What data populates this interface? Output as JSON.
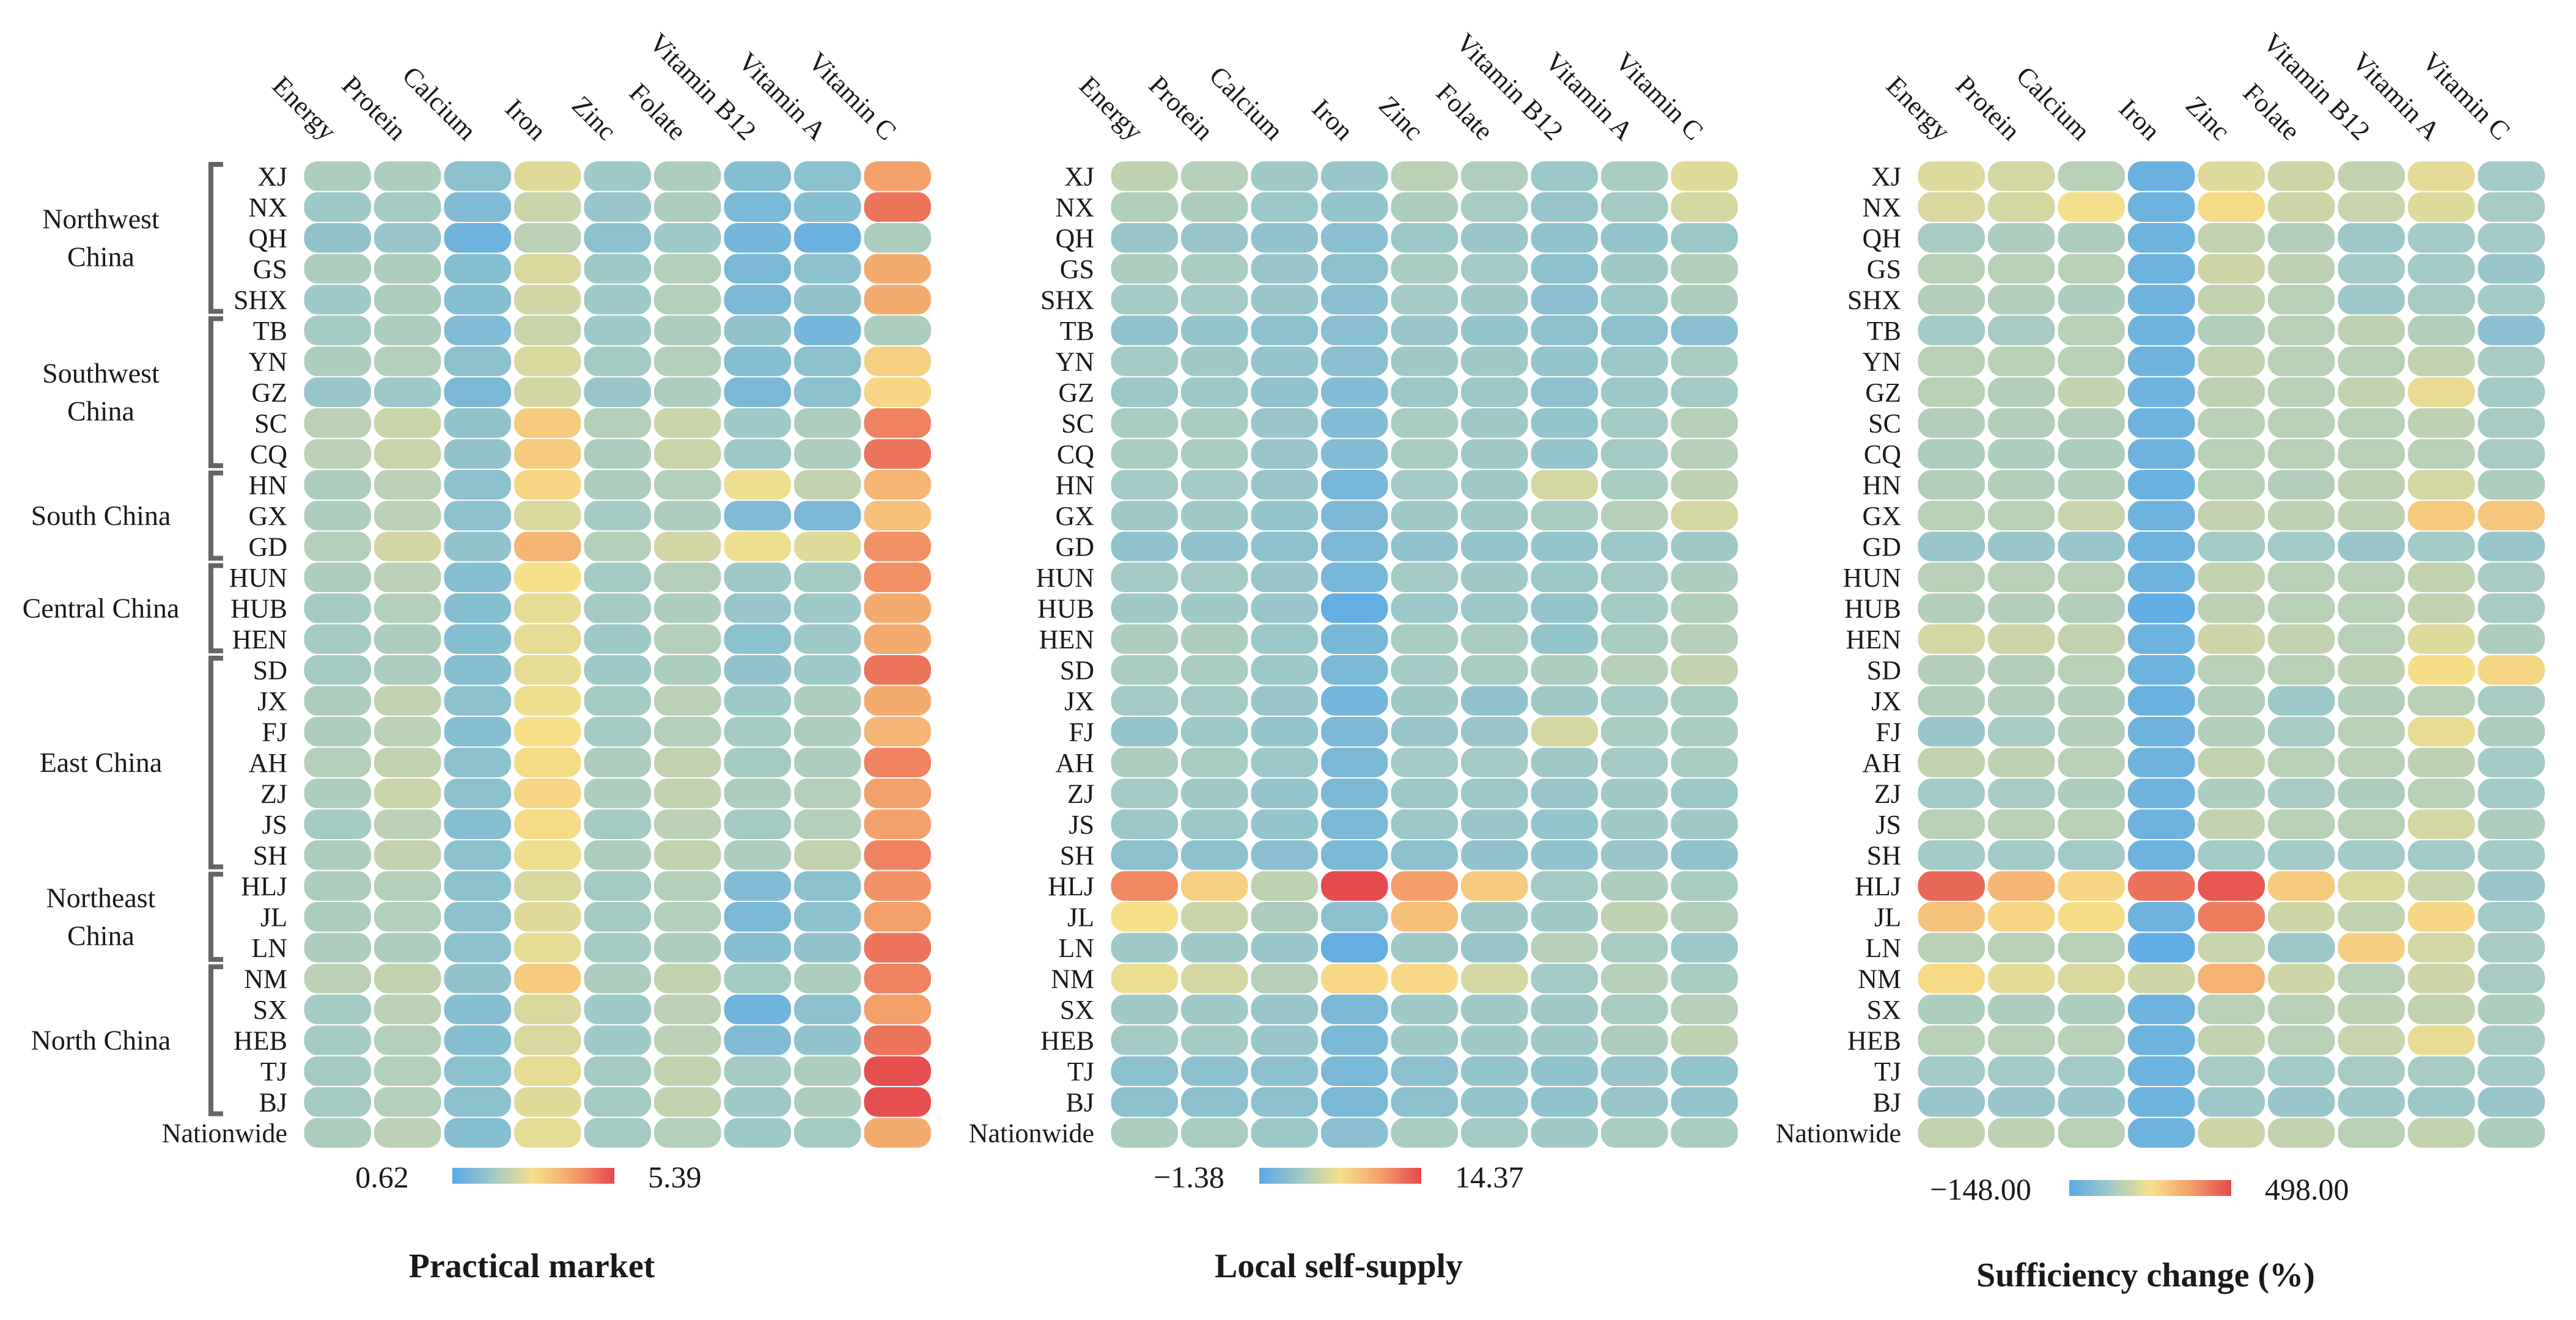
{
  "chart_data": [
    {
      "type": "heatmap",
      "title": "Practical market",
      "nutrients": [
        "Energy",
        "Protein",
        "Calcium",
        "Iron",
        "Zinc",
        "Folate",
        "Vitamin B12",
        "Vitamin A",
        "Vitamin C"
      ],
      "regions": [
        "XJ",
        "NX",
        "QH",
        "GS",
        "SHX",
        "TB",
        "YN",
        "GZ",
        "SC",
        "CQ",
        "HN",
        "GX",
        "GD",
        "HUN",
        "HUB",
        "HEN",
        "SD",
        "JX",
        "FJ",
        "AH",
        "ZJ",
        "JS",
        "SH",
        "HLJ",
        "JL",
        "LN",
        "NM",
        "SX",
        "HEB",
        "TJ",
        "BJ",
        "Nationwide"
      ],
      "groups": [
        {
          "label": [
            "Northwest",
            "China"
          ],
          "from": 0,
          "to": 4
        },
        {
          "label": [
            "Southwest",
            "China"
          ],
          "from": 5,
          "to": 9
        },
        {
          "label": [
            "South China"
          ],
          "from": 10,
          "to": 12
        },
        {
          "label": [
            "Central  China"
          ],
          "from": 13,
          "to": 15
        },
        {
          "label": [
            "East  China"
          ],
          "from": 16,
          "to": 22
        },
        {
          "label": [
            "Northeast",
            "China"
          ],
          "from": 23,
          "to": 25
        },
        {
          "label": [
            "North China"
          ],
          "from": 26,
          "to": 30
        }
      ],
      "color_range": [
        0.62,
        5.39
      ],
      "color_range_labels": [
        "0.62",
        "5.39"
      ],
      "values": [
        [
          2.0,
          2.0,
          1.5,
          2.7,
          1.8,
          2.0,
          1.4,
          1.5,
          4.2
        ],
        [
          1.8,
          1.9,
          1.3,
          2.4,
          1.7,
          2.0,
          1.2,
          1.4,
          4.8
        ],
        [
          1.6,
          1.7,
          1.0,
          2.2,
          1.5,
          1.8,
          1.1,
          0.9,
          2.0
        ],
        [
          2.0,
          2.0,
          1.4,
          2.6,
          1.8,
          2.1,
          1.2,
          1.5,
          4.0
        ],
        [
          1.8,
          2.0,
          1.4,
          2.5,
          1.8,
          2.1,
          1.2,
          1.6,
          4.0
        ],
        [
          1.9,
          2.0,
          1.3,
          2.4,
          1.8,
          2.0,
          1.6,
          1.1,
          2.0
        ],
        [
          2.0,
          2.1,
          1.5,
          2.6,
          1.9,
          2.1,
          1.4,
          1.5,
          3.3
        ],
        [
          1.7,
          1.8,
          1.2,
          2.5,
          1.7,
          2.0,
          1.2,
          1.5,
          3.2
        ],
        [
          2.2,
          2.4,
          1.6,
          3.4,
          2.1,
          2.4,
          1.8,
          2.0,
          4.6
        ],
        [
          2.2,
          2.4,
          1.6,
          3.4,
          2.0,
          2.4,
          1.8,
          2.0,
          4.8
        ],
        [
          2.0,
          2.2,
          1.5,
          3.2,
          2.0,
          2.1,
          2.9,
          2.3,
          3.8
        ],
        [
          2.0,
          2.2,
          1.5,
          2.6,
          1.9,
          2.0,
          1.3,
          1.2,
          3.6
        ],
        [
          2.1,
          2.5,
          1.6,
          3.8,
          2.1,
          2.5,
          2.9,
          2.7,
          4.4
        ],
        [
          2.0,
          2.2,
          1.4,
          3.0,
          1.9,
          2.1,
          1.8,
          1.9,
          4.4
        ],
        [
          1.9,
          2.1,
          1.4,
          2.8,
          1.9,
          2.0,
          1.7,
          1.8,
          4.0
        ],
        [
          1.9,
          2.0,
          1.4,
          2.8,
          1.8,
          2.1,
          1.5,
          1.8,
          4.0
        ],
        [
          1.9,
          2.0,
          1.4,
          2.8,
          1.8,
          2.0,
          1.6,
          1.8,
          4.8
        ],
        [
          2.0,
          2.3,
          1.5,
          2.9,
          1.9,
          2.2,
          1.8,
          2.0,
          4.0
        ],
        [
          2.0,
          2.2,
          1.4,
          3.0,
          1.9,
          2.1,
          1.9,
          2.0,
          3.8
        ],
        [
          2.1,
          2.3,
          1.5,
          3.1,
          2.0,
          2.3,
          1.9,
          2.0,
          4.6
        ],
        [
          2.0,
          2.4,
          1.5,
          3.2,
          2.0,
          2.3,
          2.0,
          2.1,
          4.2
        ],
        [
          1.9,
          2.2,
          1.4,
          3.1,
          1.9,
          2.2,
          1.9,
          2.1,
          4.2
        ],
        [
          2.0,
          2.3,
          1.5,
          2.9,
          2.0,
          2.3,
          2.0,
          2.3,
          4.6
        ],
        [
          2.0,
          2.1,
          1.5,
          2.6,
          1.9,
          2.1,
          1.3,
          1.5,
          4.4
        ],
        [
          2.0,
          2.1,
          1.5,
          2.7,
          1.9,
          2.1,
          1.2,
          1.5,
          4.2
        ],
        [
          2.0,
          2.0,
          1.5,
          2.8,
          1.9,
          2.0,
          1.4,
          1.6,
          4.8
        ],
        [
          2.2,
          2.3,
          1.6,
          3.4,
          2.0,
          2.3,
          1.9,
          2.0,
          4.6
        ],
        [
          1.9,
          2.2,
          1.4,
          2.6,
          1.8,
          2.2,
          1.0,
          1.5,
          4.2
        ],
        [
          1.9,
          2.1,
          1.4,
          2.6,
          1.8,
          2.2,
          1.3,
          1.6,
          4.8
        ],
        [
          1.9,
          2.1,
          1.5,
          2.8,
          1.9,
          2.3,
          1.9,
          2.0,
          5.3
        ],
        [
          1.9,
          2.1,
          1.5,
          2.7,
          1.9,
          2.3,
          1.8,
          2.0,
          5.3
        ],
        [
          2.0,
          2.2,
          1.4,
          2.8,
          1.9,
          2.1,
          1.8,
          1.9,
          4.0
        ]
      ]
    },
    {
      "type": "heatmap",
      "title": "Local self-supply",
      "nutrients": [
        "Energy",
        "Protein",
        "Calcium",
        "Iron",
        "Zinc",
        "Folate",
        "Vitamin B12",
        "Vitamin A",
        "Vitamin C"
      ],
      "regions": [
        "XJ",
        "NX",
        "QH",
        "GS",
        "SHX",
        "TB",
        "YN",
        "GZ",
        "SC",
        "CQ",
        "HN",
        "GX",
        "GD",
        "HUN",
        "HUB",
        "HEN",
        "SD",
        "JX",
        "FJ",
        "AH",
        "ZJ",
        "JS",
        "SH",
        "HLJ",
        "JL",
        "LN",
        "NM",
        "SX",
        "HEB",
        "TJ",
        "BJ",
        "Nationwide"
      ],
      "color_range": [
        -1.38,
        14.37
      ],
      "color_range_labels": [
        "−1.38",
        "14.37"
      ],
      "values": [
        [
          4.0,
          3.6,
          2.6,
          2.2,
          3.8,
          3.3,
          2.4,
          3.0,
          5.5
        ],
        [
          3.4,
          3.2,
          2.4,
          2.0,
          3.2,
          2.9,
          2.1,
          2.8,
          5.0
        ],
        [
          2.2,
          2.2,
          1.8,
          1.4,
          2.4,
          2.3,
          1.8,
          2.0,
          2.4
        ],
        [
          3.2,
          3.0,
          2.2,
          1.6,
          3.0,
          2.8,
          1.6,
          2.6,
          3.4
        ],
        [
          2.8,
          2.8,
          2.2,
          1.4,
          2.8,
          2.6,
          1.4,
          2.4,
          3.2
        ],
        [
          1.8,
          2.0,
          1.6,
          1.4,
          2.2,
          2.0,
          1.6,
          1.6,
          1.4
        ],
        [
          2.8,
          2.6,
          2.0,
          1.4,
          2.6,
          2.6,
          2.0,
          2.4,
          3.0
        ],
        [
          2.4,
          2.4,
          1.8,
          1.0,
          2.4,
          2.4,
          1.6,
          2.4,
          2.8
        ],
        [
          3.0,
          3.0,
          2.2,
          1.0,
          3.0,
          2.6,
          2.0,
          2.8,
          3.6
        ],
        [
          3.0,
          3.0,
          2.2,
          1.0,
          3.0,
          2.6,
          2.0,
          2.8,
          3.6
        ],
        [
          2.8,
          2.8,
          2.2,
          0.3,
          2.8,
          2.6,
          5.0,
          3.0,
          4.0
        ],
        [
          2.6,
          2.6,
          2.0,
          0.6,
          2.6,
          2.6,
          3.0,
          3.6,
          5.0
        ],
        [
          1.8,
          1.8,
          1.6,
          0.6,
          1.8,
          2.0,
          2.0,
          2.4,
          2.6
        ],
        [
          2.8,
          2.8,
          2.2,
          0.4,
          2.8,
          2.6,
          2.4,
          2.8,
          3.2
        ],
        [
          2.6,
          2.6,
          2.2,
          -0.8,
          2.4,
          2.4,
          2.0,
          2.8,
          3.4
        ],
        [
          3.2,
          3.2,
          2.4,
          0.4,
          3.0,
          3.0,
          2.0,
          3.0,
          3.6
        ],
        [
          3.0,
          3.0,
          2.4,
          0.6,
          2.8,
          3.0,
          3.2,
          3.6,
          4.2
        ],
        [
          2.8,
          2.8,
          2.2,
          0.2,
          2.6,
          1.8,
          2.6,
          2.8,
          3.0
        ],
        [
          2.0,
          2.4,
          2.0,
          0.6,
          2.2,
          2.2,
          5.0,
          3.0,
          3.0
        ],
        [
          3.2,
          3.0,
          2.4,
          0.6,
          2.8,
          2.8,
          2.6,
          2.8,
          3.0
        ],
        [
          2.8,
          2.6,
          2.0,
          0.6,
          2.4,
          2.4,
          2.2,
          2.6,
          2.4
        ],
        [
          2.4,
          2.4,
          2.0,
          0.6,
          2.4,
          2.2,
          2.0,
          2.6,
          2.6
        ],
        [
          1.6,
          1.6,
          1.4,
          0.6,
          1.6,
          1.8,
          1.8,
          2.2,
          1.8
        ],
        [
          11.5,
          7.5,
          4.0,
          14.3,
          10.5,
          7.8,
          2.8,
          3.2,
          3.0
        ],
        [
          6.5,
          4.5,
          3.2,
          1.6,
          8.5,
          2.6,
          2.6,
          4.0,
          3.4
        ],
        [
          2.6,
          2.6,
          2.2,
          -0.8,
          2.6,
          2.2,
          3.6,
          3.0,
          2.4
        ],
        [
          6.0,
          5.0,
          3.6,
          7.0,
          7.0,
          5.0,
          2.8,
          3.6,
          3.0
        ],
        [
          2.6,
          2.6,
          2.2,
          0.6,
          2.6,
          2.6,
          2.6,
          3.0,
          3.6
        ],
        [
          2.8,
          2.8,
          2.2,
          0.6,
          2.6,
          2.6,
          2.6,
          3.2,
          4.0
        ],
        [
          1.6,
          1.6,
          1.6,
          0.6,
          1.6,
          2.0,
          1.8,
          2.2,
          2.0
        ],
        [
          1.6,
          1.6,
          1.6,
          0.6,
          1.6,
          2.0,
          1.8,
          2.2,
          2.0
        ],
        [
          3.2,
          3.0,
          2.4,
          1.4,
          3.0,
          2.8,
          2.6,
          3.0,
          3.0
        ]
      ]
    },
    {
      "type": "heatmap",
      "title": "Sufficiency change (%)",
      "nutrients": [
        "Energy",
        "Protein",
        "Calcium",
        "Iron",
        "Zinc",
        "Folate",
        "Vitamin B12",
        "Vitamin A",
        "Vitamin C"
      ],
      "regions": [
        "XJ",
        "NX",
        "QH",
        "GS",
        "SHX",
        "TB",
        "YN",
        "GZ",
        "SC",
        "CQ",
        "HN",
        "GX",
        "GD",
        "HUN",
        "HUB",
        "HEN",
        "SD",
        "JX",
        "FJ",
        "AH",
        "ZJ",
        "JS",
        "SH",
        "HLJ",
        "JL",
        "LN",
        "NM",
        "SX",
        "HEB",
        "TJ",
        "BJ",
        "Nationwide"
      ],
      "color_range": [
        -148.0,
        498.0
      ],
      "color_range_labels": [
        "−148.00",
        "498.00"
      ],
      "values": [
        [
          130,
          110,
          60,
          -110,
          130,
          100,
          80,
          140,
          20
        ],
        [
          120,
          110,
          170,
          -100,
          190,
          100,
          90,
          130,
          30
        ],
        [
          30,
          40,
          40,
          -100,
          80,
          50,
          10,
          20,
          20
        ],
        [
          60,
          60,
          60,
          -100,
          100,
          70,
          20,
          20,
          0
        ],
        [
          50,
          50,
          40,
          -100,
          80,
          60,
          10,
          30,
          20
        ],
        [
          20,
          30,
          60,
          -100,
          50,
          60,
          70,
          50,
          -30
        ],
        [
          60,
          60,
          60,
          -100,
          80,
          60,
          60,
          80,
          30
        ],
        [
          60,
          50,
          80,
          -100,
          70,
          60,
          80,
          150,
          20
        ],
        [
          50,
          50,
          50,
          -100,
          60,
          60,
          60,
          70,
          30
        ],
        [
          40,
          40,
          40,
          -100,
          60,
          60,
          60,
          60,
          30
        ],
        [
          50,
          50,
          50,
          -110,
          60,
          50,
          70,
          110,
          40
        ],
        [
          60,
          60,
          90,
          -100,
          80,
          70,
          70,
          230,
          240
        ],
        [
          0,
          0,
          0,
          -100,
          20,
          20,
          0,
          20,
          0
        ],
        [
          60,
          60,
          60,
          -100,
          80,
          60,
          60,
          80,
          30
        ],
        [
          50,
          50,
          50,
          -130,
          70,
          60,
          60,
          80,
          30
        ],
        [
          110,
          100,
          80,
          -100,
          100,
          80,
          60,
          130,
          40
        ],
        [
          50,
          50,
          60,
          -100,
          60,
          60,
          70,
          180,
          200
        ],
        [
          50,
          50,
          50,
          -110,
          50,
          10,
          50,
          60,
          30
        ],
        [
          0,
          30,
          50,
          -100,
          50,
          30,
          60,
          150,
          40
        ],
        [
          80,
          70,
          60,
          -100,
          80,
          60,
          60,
          70,
          20
        ],
        [
          20,
          30,
          40,
          -100,
          40,
          30,
          40,
          60,
          20
        ],
        [
          60,
          60,
          60,
          -100,
          80,
          60,
          60,
          110,
          40
        ],
        [
          20,
          20,
          20,
          -100,
          20,
          20,
          20,
          20,
          20
        ],
        [
          440,
          280,
          200,
          420,
          470,
          230,
          120,
          90,
          0
        ],
        [
          250,
          200,
          180,
          -100,
          400,
          100,
          80,
          200,
          20
        ],
        [
          60,
          60,
          60,
          -130,
          90,
          10,
          220,
          110,
          30
        ],
        [
          190,
          140,
          120,
          100,
          290,
          100,
          60,
          100,
          30
        ],
        [
          40,
          40,
          40,
          -100,
          60,
          60,
          70,
          80,
          40
        ],
        [
          60,
          60,
          60,
          -100,
          80,
          60,
          90,
          150,
          30
        ],
        [
          20,
          20,
          20,
          -100,
          30,
          20,
          30,
          30,
          20
        ],
        [
          0,
          0,
          0,
          -100,
          10,
          0,
          10,
          10,
          0
        ],
        [
          80,
          70,
          60,
          -100,
          100,
          80,
          60,
          80,
          40
        ]
      ]
    }
  ]
}
